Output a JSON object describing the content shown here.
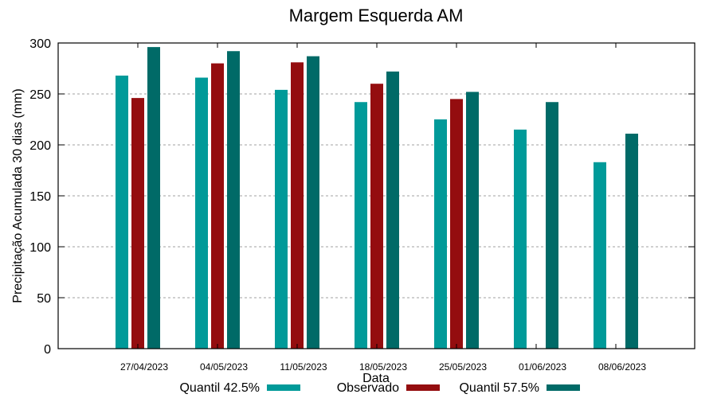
{
  "chart_data": {
    "type": "bar",
    "title": "Margem Esquerda AM",
    "xlabel": "Data",
    "ylabel": "Precipitação Acumulada 30 dias (mm)",
    "ylim": [
      0,
      300
    ],
    "yticks": [
      0,
      50,
      100,
      150,
      200,
      250,
      300
    ],
    "grid": "horizontal dotted",
    "legend_position": "bottom",
    "categories": [
      "27/04/2023",
      "04/05/2023",
      "11/05/2023",
      "18/05/2023",
      "25/05/2023",
      "01/06/2023",
      "08/06/2023"
    ],
    "series": [
      {
        "name": "Quantil 42.5%",
        "color": "#009a99",
        "values": [
          268,
          266,
          254,
          242,
          225,
          215,
          183
        ]
      },
      {
        "name": "Observado",
        "color": "#940d0f",
        "values": [
          246,
          280,
          281,
          260,
          245,
          null,
          null
        ]
      },
      {
        "name": "Quantil 57.5%",
        "color": "#006a67",
        "values": [
          296,
          292,
          287,
          272,
          252,
          242,
          211
        ]
      }
    ]
  }
}
